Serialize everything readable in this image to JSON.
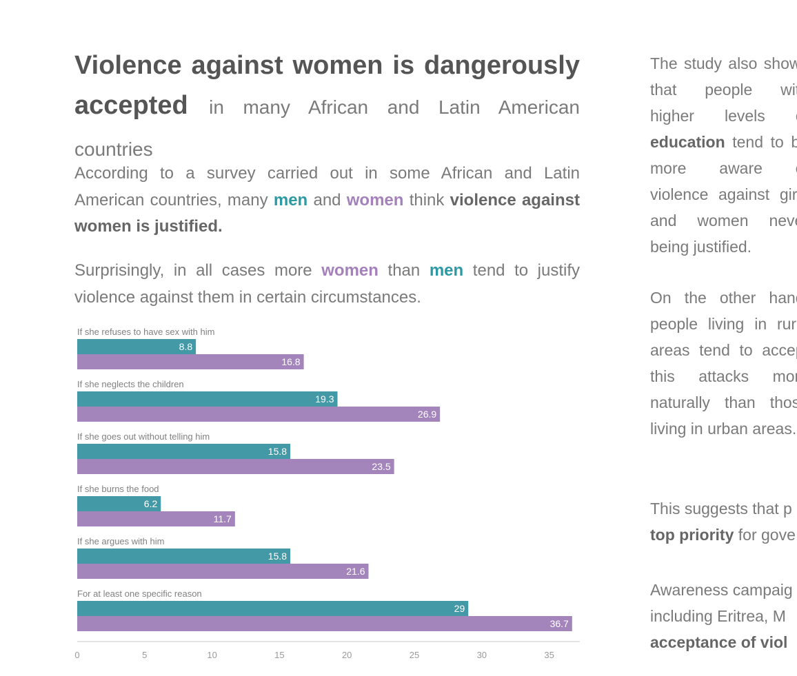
{
  "headline": {
    "bold": "Violence against women is dangerously accepted",
    "rest": "in many African and Latin American countries"
  },
  "intro": {
    "p1_a": "According to a survey carried out in some African and Latin American countries, many",
    "men": "men",
    "and": "and",
    "women": "women",
    "think": "think",
    "p1_bold": "violence against women is justified.",
    "p2_a": "Surprisingly, in all cases more",
    "than": "than",
    "p2_b": "tend to justify violence against them in certain circumstances."
  },
  "side": {
    "s1_a": "The study also shows that people with higher levels of",
    "s1_bold": "education",
    "s1_b": "tend to be more aware of violence against girls and women never being justified.",
    "s2": "On the other hand, people living in rural areas tend to accept this attacks more naturally than those living in urban areas.",
    "s3_a": "This suggests that p",
    "s3_bold": "top priority",
    "s3_b": "for gove",
    "s4_a": "Awareness campaig",
    "s4_b": "including Eritrea, M",
    "s4_bold": "acceptance of viol"
  },
  "colors": {
    "men": "#4499a6",
    "women": "#a385bb",
    "label": "#808080",
    "axis": "#c8c8c8"
  },
  "chart_data": {
    "type": "bar",
    "orientation": "horizontal",
    "categories": [
      "If she refuses to have sex with him",
      "If she neglects the children",
      "If she goes out without telling him",
      "If she burns the food",
      "If she argues with him",
      "For at least one specific reason"
    ],
    "series": [
      {
        "values": [
          8.8,
          19.3,
          15.8,
          6.2,
          15.8,
          29
        ]
      },
      {
        "values": [
          16.8,
          26.9,
          23.5,
          11.7,
          21.6,
          36.7
        ]
      }
    ],
    "xlim": [
      0,
      37
    ],
    "xticks": [
      0,
      5,
      10,
      15,
      20,
      25,
      30,
      35
    ],
    "grid": false,
    "legend": "none"
  }
}
